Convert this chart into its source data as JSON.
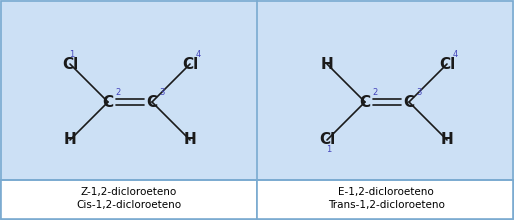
{
  "bg_color": "#cce0f5",
  "white_color": "#ffffff",
  "border_color": "#7aaad0",
  "text_color": "#000000",
  "number_color": "#4444bb",
  "line_color": "#1a1a1a",
  "font_size_atom": 11,
  "font_size_number": 6,
  "font_size_label": 7.5,
  "left_labels": [
    "Z-1,2-dicloroeteno",
    "Cis-1,2-dicloroeteno"
  ],
  "right_labels": [
    "E-1,2-dicloroeteno",
    "Trans-1,2-dicloroeteno"
  ],
  "figsize": [
    5.14,
    2.2
  ],
  "dpi": 100
}
